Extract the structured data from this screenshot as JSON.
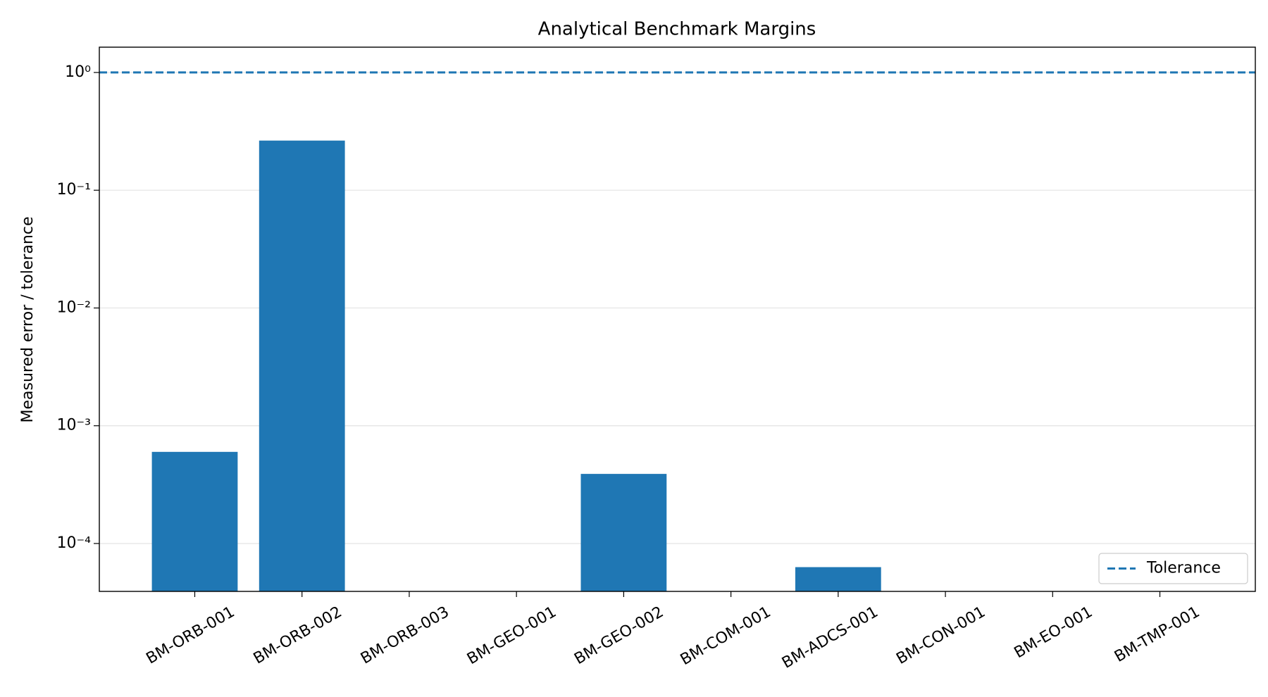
{
  "chart_data": {
    "type": "bar",
    "title": "Analytical Benchmark Margins",
    "y_label": "Measured error / tolerance",
    "categories": [
      "BM-ORB-001",
      "BM-ORB-002",
      "BM-ORB-003",
      "BM-GEO-001",
      "BM-GEO-002",
      "BM-COM-001",
      "BM-ADCS-001",
      "BM-CON-001",
      "BM-EO-001",
      "BM-TMP-001"
    ],
    "values": [
      0.0006,
      0.264,
      0,
      0,
      0.00039,
      0,
      6.3e-05,
      0,
      0,
      0
    ],
    "color": "#1f77b4",
    "y_scale": "log",
    "ylim": [
      3.92e-05,
      1.64
    ],
    "yticks": [
      {
        "value": 0.0001,
        "label": "10⁻⁴"
      },
      {
        "value": 0.001,
        "label": "10⁻³"
      },
      {
        "value": 0.01,
        "label": "10⁻²"
      },
      {
        "value": 0.1,
        "label": "10⁻¹"
      },
      {
        "value": 1,
        "label": "10⁰"
      }
    ],
    "grid": true,
    "reference_line": {
      "name": "Tolerance",
      "value": 1,
      "color": "#1f77b4"
    },
    "legend_position": "lower right"
  }
}
